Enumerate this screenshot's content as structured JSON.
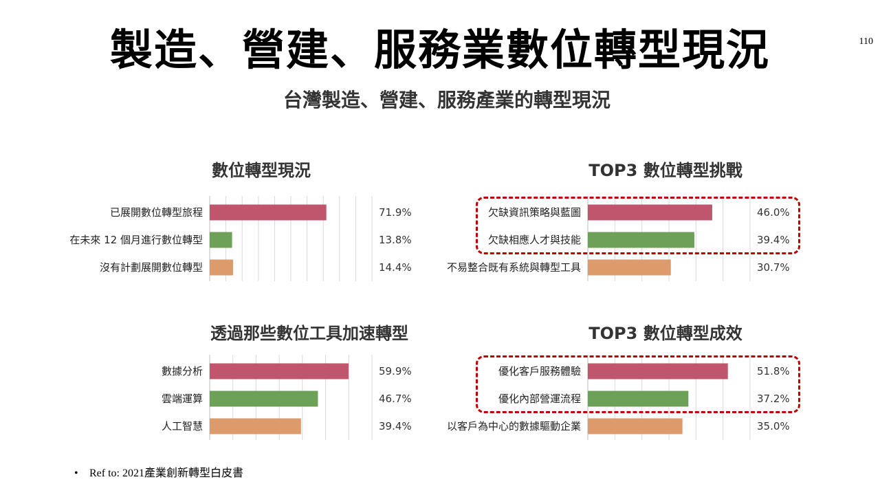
{
  "page": {
    "title": "製造、營建、服務業數位轉型現況",
    "page_number": "110",
    "subtitle": "台灣製造、營建、服務產業的轉型現況",
    "footnote": "Ref to: 2021產業創新轉型白皮書"
  },
  "colors": {
    "series1": "#c0566d",
    "series2": "#6ea158",
    "series3": "#dd9a6a",
    "grid": "#d9d9d9",
    "highlight": "#c00000"
  },
  "chart_data": [
    {
      "type": "bar",
      "title": "數位轉型現況",
      "categories": [
        "已展開數位轉型旅程",
        "在未來 12 個月進行數位轉型",
        "沒有計劃展開數位轉型"
      ],
      "values": [
        71.9,
        13.8,
        14.4
      ],
      "value_labels": [
        "71.9%",
        "13.8%",
        "14.4%"
      ],
      "unit": "%",
      "xlim": [
        0,
        100
      ],
      "grid": true,
      "orientation": "horizontal"
    },
    {
      "type": "bar",
      "title": "TOP3 數位轉型挑戰",
      "categories": [
        "欠缺資訊策略與藍圖",
        "欠缺相應人才與技能",
        "不易整合既有系統與轉型工具"
      ],
      "values": [
        46.0,
        39.4,
        30.7
      ],
      "value_labels": [
        "46.0%",
        "39.4%",
        "30.7%"
      ],
      "unit": "%",
      "xlim": [
        0,
        60
      ],
      "grid": true,
      "orientation": "horizontal",
      "highlighted_rows": [
        0,
        1
      ]
    },
    {
      "type": "bar",
      "title": "透過那些數位工具加速轉型",
      "categories": [
        "數據分析",
        "雲端運算",
        "人工智慧"
      ],
      "values": [
        59.9,
        46.7,
        39.4
      ],
      "value_labels": [
        "59.9%",
        "46.7%",
        "39.4%"
      ],
      "unit": "%",
      "xlim": [
        0,
        70
      ],
      "grid": true,
      "orientation": "horizontal"
    },
    {
      "type": "bar",
      "title": "TOP3 數位轉型成效",
      "categories": [
        "優化客戶服務體驗",
        "優化內部營運流程",
        "以客戶為中心的數據驅動企業"
      ],
      "values": [
        51.8,
        37.2,
        35.0
      ],
      "value_labels": [
        "51.8%",
        "37.2%",
        "35.0%"
      ],
      "unit": "%",
      "xlim": [
        0,
        60
      ],
      "grid": true,
      "orientation": "horizontal",
      "highlighted_rows": [
        0,
        1
      ]
    }
  ]
}
